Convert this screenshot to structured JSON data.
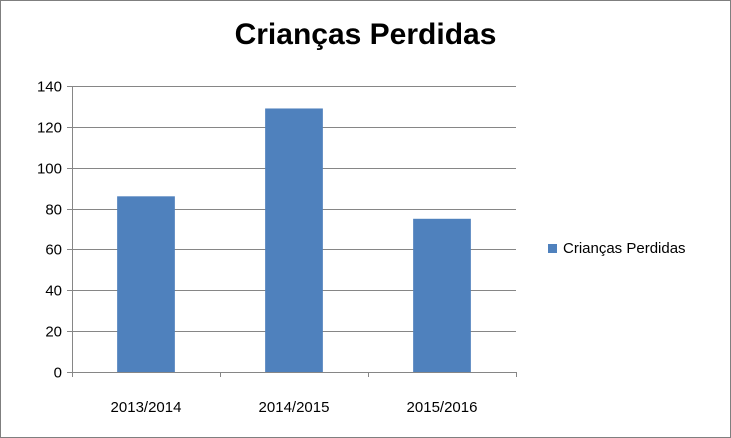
{
  "chart_data": {
    "type": "bar",
    "title": "Crianças Perdidas",
    "categories": [
      "2013/2014",
      "2014/2015",
      "2015/2016"
    ],
    "series": [
      {
        "name": "Crianças Perdidas",
        "values": [
          86,
          129,
          75
        ],
        "color": "#4f81bd"
      }
    ],
    "ylim": [
      0,
      140
    ],
    "yticks": [
      0,
      20,
      40,
      60,
      80,
      100,
      120,
      140
    ],
    "grid": true,
    "legend_position": "right"
  }
}
